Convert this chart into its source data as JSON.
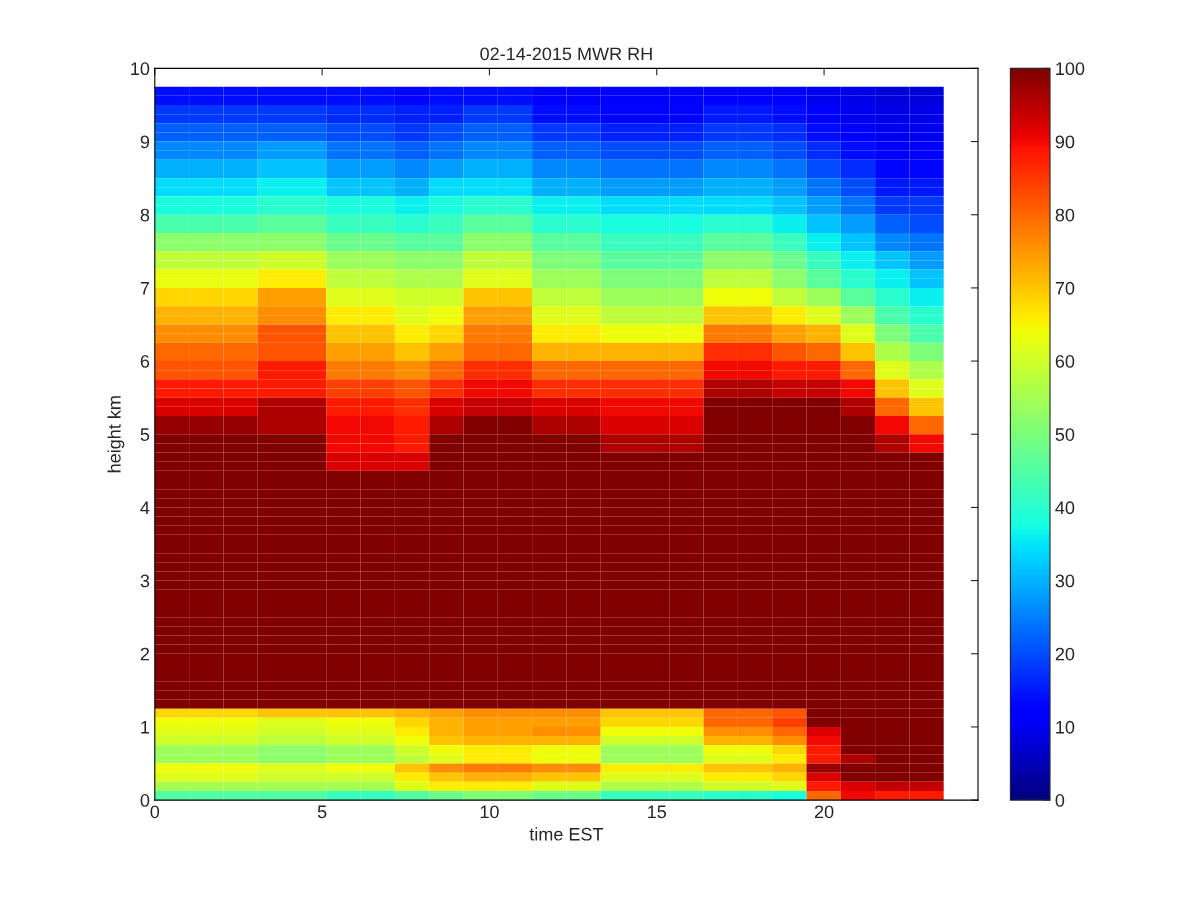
{
  "chart_data": {
    "type": "heatmap",
    "title": "02-14-2015 MWR RH",
    "xlabel": "time EST",
    "ylabel": "height km",
    "x": [
      0.5125,
      1.5375,
      2.5625,
      3.5875,
      4.6125,
      5.6375,
      6.6625,
      7.6875,
      8.7125,
      9.7375,
      10.7625,
      11.7875,
      12.8125,
      13.8375,
      14.8625,
      15.8875,
      16.9125,
      17.9375,
      18.9625,
      19.9875,
      21.0125,
      22.0375,
      23.0625
    ],
    "y": [
      9.6875,
      9.5625,
      9.4375,
      9.3125,
      9.1875,
      9.0625,
      8.9375,
      8.8125,
      8.6875,
      8.5625,
      8.4375,
      8.3125,
      8.1875,
      8.0625,
      7.9375,
      7.8125,
      7.6875,
      7.5625,
      7.4375,
      7.3125,
      7.1875,
      7.0625,
      6.9375,
      6.8125,
      6.6875,
      6.5625,
      6.4375,
      6.3125,
      6.1875,
      6.0625,
      5.9375,
      5.8125,
      5.6875,
      5.5625,
      5.4375,
      5.3125,
      5.1875,
      5.0625,
      4.9375,
      4.8125,
      4.6875,
      4.5625,
      4.4375,
      4.3125,
      4.1875,
      4.0625,
      3.9375,
      3.8125,
      3.6875,
      3.5625,
      3.4375,
      3.3125,
      3.1875,
      3.0625,
      2.9375,
      2.8125,
      2.6875,
      2.5625,
      2.4375,
      2.3125,
      2.1875,
      2.0625,
      1.9375,
      1.8125,
      1.6875,
      1.5625,
      1.4375,
      1.3125,
      1.1875,
      1.0625,
      0.9375,
      0.8125,
      0.6875,
      0.5625,
      0.4375,
      0.3125,
      0.1875,
      0.0625
    ],
    "xlim": [
      0,
      24.6
    ],
    "ylim": [
      0,
      10
    ],
    "xticks": [
      0,
      5,
      10,
      15,
      20
    ],
    "yticks": [
      0,
      1,
      2,
      3,
      4,
      5,
      6,
      7,
      8,
      9,
      10
    ],
    "clim": [
      0,
      100
    ],
    "cticks": [
      0,
      10,
      20,
      30,
      40,
      50,
      60,
      70,
      80,
      90,
      100
    ],
    "grid": false,
    "cells": [
      [
        14,
        14,
        14,
        14,
        14,
        14,
        14,
        13,
        14,
        14,
        14,
        12,
        12,
        11,
        11,
        11,
        12,
        12,
        12,
        10,
        9,
        8,
        8
      ],
      [
        14,
        14,
        14,
        14,
        14,
        14,
        14,
        13,
        14,
        14,
        14,
        12,
        12,
        11,
        11,
        11,
        12,
        12,
        12,
        10,
        9,
        8,
        8
      ],
      [
        18,
        18,
        18,
        18,
        18,
        17,
        17,
        16,
        16,
        18,
        18,
        14,
        14,
        13,
        13,
        13,
        15,
        15,
        14,
        12,
        10,
        9,
        9
      ],
      [
        18,
        18,
        18,
        18,
        18,
        17,
        17,
        16,
        16,
        18,
        18,
        14,
        14,
        13,
        13,
        13,
        15,
        15,
        14,
        12,
        10,
        9,
        9
      ],
      [
        22,
        22,
        22,
        22,
        22,
        20,
        20,
        18,
        20,
        22,
        22,
        18,
        18,
        16,
        16,
        16,
        18,
        18,
        17,
        14,
        12,
        10,
        10
      ],
      [
        22,
        22,
        22,
        22,
        22,
        20,
        20,
        18,
        20,
        22,
        22,
        18,
        18,
        16,
        16,
        16,
        18,
        18,
        17,
        14,
        12,
        10,
        10
      ],
      [
        26,
        26,
        26,
        28,
        28,
        24,
        24,
        22,
        24,
        26,
        26,
        22,
        22,
        20,
        20,
        20,
        22,
        22,
        20,
        17,
        14,
        11,
        11
      ],
      [
        26,
        26,
        26,
        28,
        28,
        24,
        24,
        22,
        24,
        26,
        26,
        22,
        22,
        20,
        20,
        20,
        22,
        22,
        20,
        17,
        14,
        11,
        11
      ],
      [
        30,
        30,
        30,
        32,
        32,
        28,
        28,
        26,
        28,
        30,
        30,
        26,
        26,
        24,
        24,
        24,
        26,
        26,
        24,
        20,
        17,
        13,
        13
      ],
      [
        30,
        30,
        30,
        32,
        32,
        28,
        28,
        26,
        28,
        30,
        30,
        26,
        26,
        24,
        24,
        24,
        26,
        26,
        24,
        20,
        17,
        13,
        13
      ],
      [
        34,
        34,
        34,
        36,
        36,
        32,
        32,
        30,
        34,
        34,
        34,
        30,
        30,
        28,
        28,
        28,
        30,
        30,
        28,
        24,
        20,
        15,
        15
      ],
      [
        34,
        34,
        34,
        36,
        36,
        32,
        32,
        30,
        34,
        34,
        34,
        30,
        30,
        28,
        28,
        28,
        30,
        30,
        28,
        24,
        20,
        15,
        15
      ],
      [
        38,
        38,
        38,
        40,
        40,
        38,
        38,
        36,
        38,
        40,
        40,
        36,
        36,
        34,
        34,
        34,
        34,
        34,
        32,
        28,
        24,
        18,
        18
      ],
      [
        38,
        38,
        38,
        40,
        40,
        38,
        38,
        36,
        38,
        40,
        40,
        36,
        36,
        34,
        34,
        34,
        34,
        34,
        32,
        28,
        24,
        18,
        18
      ],
      [
        44,
        44,
        44,
        46,
        46,
        42,
        42,
        40,
        42,
        46,
        46,
        40,
        40,
        38,
        38,
        38,
        40,
        40,
        36,
        32,
        28,
        22,
        20
      ],
      [
        44,
        44,
        44,
        46,
        46,
        42,
        42,
        40,
        42,
        46,
        46,
        40,
        40,
        38,
        38,
        38,
        40,
        40,
        36,
        32,
        28,
        22,
        20
      ],
      [
        52,
        52,
        52,
        52,
        52,
        48,
        48,
        46,
        46,
        52,
        52,
        46,
        46,
        42,
        42,
        42,
        46,
        46,
        42,
        36,
        32,
        26,
        24
      ],
      [
        52,
        52,
        52,
        52,
        52,
        48,
        48,
        46,
        46,
        52,
        52,
        46,
        46,
        42,
        42,
        42,
        46,
        46,
        42,
        36,
        32,
        26,
        24
      ],
      [
        58,
        58,
        58,
        60,
        60,
        54,
        54,
        52,
        52,
        58,
        58,
        50,
        50,
        46,
        46,
        46,
        52,
        52,
        48,
        42,
        36,
        32,
        28
      ],
      [
        58,
        58,
        58,
        60,
        60,
        54,
        54,
        52,
        52,
        58,
        58,
        50,
        50,
        46,
        46,
        46,
        52,
        52,
        48,
        42,
        36,
        32,
        28
      ],
      [
        63,
        63,
        63,
        66,
        66,
        58,
        58,
        56,
        56,
        62,
        62,
        54,
        54,
        50,
        50,
        50,
        58,
        58,
        52,
        46,
        40,
        36,
        32
      ],
      [
        63,
        63,
        63,
        66,
        66,
        58,
        58,
        56,
        56,
        62,
        62,
        54,
        54,
        50,
        50,
        50,
        58,
        58,
        52,
        46,
        40,
        36,
        32
      ],
      [
        68,
        68,
        68,
        74,
        74,
        62,
        62,
        60,
        60,
        70,
        70,
        58,
        58,
        54,
        54,
        54,
        64,
        64,
        58,
        54,
        46,
        40,
        36
      ],
      [
        68,
        68,
        68,
        74,
        74,
        62,
        62,
        60,
        60,
        70,
        70,
        58,
        58,
        54,
        54,
        54,
        64,
        64,
        58,
        54,
        46,
        40,
        36
      ],
      [
        72,
        72,
        72,
        76,
        76,
        66,
        66,
        62,
        64,
        74,
        74,
        62,
        62,
        58,
        58,
        58,
        70,
        70,
        66,
        62,
        54,
        44,
        40
      ],
      [
        72,
        72,
        72,
        76,
        76,
        66,
        66,
        62,
        64,
        74,
        74,
        62,
        62,
        58,
        58,
        58,
        70,
        70,
        66,
        62,
        54,
        44,
        40
      ],
      [
        76,
        76,
        76,
        82,
        82,
        70,
        70,
        66,
        68,
        78,
        78,
        66,
        66,
        64,
        64,
        64,
        78,
        78,
        74,
        72,
        62,
        50,
        44
      ],
      [
        76,
        76,
        76,
        82,
        82,
        70,
        70,
        66,
        68,
        78,
        78,
        66,
        66,
        64,
        64,
        64,
        78,
        78,
        74,
        72,
        62,
        50,
        44
      ],
      [
        80,
        80,
        80,
        82,
        82,
        74,
        74,
        70,
        74,
        80,
        80,
        72,
        72,
        72,
        72,
        72,
        86,
        86,
        82,
        80,
        70,
        56,
        50
      ],
      [
        80,
        80,
        80,
        82,
        82,
        74,
        74,
        70,
        74,
        80,
        80,
        72,
        72,
        72,
        72,
        72,
        86,
        86,
        82,
        80,
        70,
        56,
        50
      ],
      [
        82,
        82,
        82,
        88,
        88,
        78,
        78,
        76,
        80,
        86,
        86,
        80,
        80,
        80,
        80,
        80,
        90,
        90,
        88,
        88,
        80,
        62,
        56
      ],
      [
        82,
        82,
        82,
        88,
        88,
        78,
        78,
        76,
        80,
        86,
        86,
        80,
        80,
        80,
        80,
        80,
        90,
        90,
        88,
        88,
        80,
        62,
        56
      ],
      [
        88,
        88,
        88,
        88,
        88,
        84,
        84,
        82,
        86,
        90,
        90,
        86,
        86,
        86,
        86,
        86,
        96,
        96,
        94,
        94,
        90,
        70,
        62
      ],
      [
        88,
        88,
        88,
        88,
        88,
        84,
        84,
        82,
        86,
        90,
        90,
        86,
        86,
        86,
        86,
        86,
        96,
        96,
        94,
        94,
        90,
        70,
        62
      ],
      [
        92,
        92,
        92,
        96,
        96,
        88,
        88,
        86,
        92,
        94,
        94,
        92,
        92,
        90,
        90,
        90,
        100,
        100,
        100,
        100,
        96,
        80,
        70
      ],
      [
        92,
        92,
        92,
        96,
        96,
        88,
        88,
        86,
        92,
        94,
        94,
        92,
        92,
        90,
        90,
        90,
        100,
        100,
        100,
        100,
        96,
        80,
        70
      ],
      [
        98,
        98,
        98,
        96,
        96,
        90,
        90,
        88,
        96,
        100,
        100,
        96,
        96,
        92,
        92,
        92,
        100,
        100,
        100,
        100,
        100,
        90,
        80
      ],
      [
        98,
        98,
        98,
        96,
        96,
        90,
        90,
        88,
        96,
        100,
        100,
        96,
        96,
        92,
        92,
        92,
        100,
        100,
        100,
        100,
        100,
        90,
        80
      ],
      [
        100,
        100,
        100,
        100,
        100,
        90,
        90,
        88,
        100,
        100,
        100,
        100,
        100,
        96,
        96,
        96,
        100,
        100,
        100,
        100,
        100,
        96,
        90
      ],
      [
        100,
        100,
        100,
        100,
        100,
        90,
        90,
        88,
        100,
        100,
        100,
        100,
        100,
        96,
        96,
        96,
        100,
        100,
        100,
        100,
        100,
        96,
        90
      ],
      [
        100,
        100,
        100,
        100,
        100,
        92,
        92,
        92,
        100,
        100,
        100,
        100,
        100,
        100,
        100,
        100,
        100,
        100,
        100,
        100,
        100,
        100,
        100
      ],
      [
        100,
        100,
        100,
        100,
        100,
        92,
        92,
        92,
        100,
        100,
        100,
        100,
        100,
        100,
        100,
        100,
        100,
        100,
        100,
        100,
        100,
        100,
        100
      ],
      [
        100,
        100,
        100,
        100,
        100,
        100,
        100,
        100,
        100,
        100,
        100,
        100,
        100,
        100,
        100,
        100,
        100,
        100,
        100,
        100,
        100,
        100,
        100
      ],
      [
        100,
        100,
        100,
        100,
        100,
        100,
        100,
        100,
        100,
        100,
        100,
        100,
        100,
        100,
        100,
        100,
        100,
        100,
        100,
        100,
        100,
        100,
        100
      ],
      [
        100,
        100,
        100,
        100,
        100,
        100,
        100,
        100,
        100,
        100,
        100,
        100,
        100,
        100,
        100,
        100,
        100,
        100,
        100,
        100,
        100,
        100,
        100
      ],
      [
        100,
        100,
        100,
        100,
        100,
        100,
        100,
        100,
        100,
        100,
        100,
        100,
        100,
        100,
        100,
        100,
        100,
        100,
        100,
        100,
        100,
        100,
        100
      ],
      [
        100,
        100,
        100,
        100,
        100,
        100,
        100,
        100,
        100,
        100,
        100,
        100,
        100,
        100,
        100,
        100,
        100,
        100,
        100,
        100,
        100,
        100,
        100
      ],
      [
        100,
        100,
        100,
        100,
        100,
        100,
        100,
        100,
        100,
        100,
        100,
        100,
        100,
        100,
        100,
        100,
        100,
        100,
        100,
        100,
        100,
        100,
        100
      ],
      [
        100,
        100,
        100,
        100,
        100,
        100,
        100,
        100,
        100,
        100,
        100,
        100,
        100,
        100,
        100,
        100,
        100,
        100,
        100,
        100,
        100,
        100,
        100
      ],
      [
        100,
        100,
        100,
        100,
        100,
        100,
        100,
        100,
        100,
        100,
        100,
        100,
        100,
        100,
        100,
        100,
        100,
        100,
        100,
        100,
        100,
        100,
        100
      ],
      [
        100,
        100,
        100,
        100,
        100,
        100,
        100,
        100,
        100,
        100,
        100,
        100,
        100,
        100,
        100,
        100,
        100,
        100,
        100,
        100,
        100,
        100,
        100
      ],
      [
        100,
        100,
        100,
        100,
        100,
        100,
        100,
        100,
        100,
        100,
        100,
        100,
        100,
        100,
        100,
        100,
        100,
        100,
        100,
        100,
        100,
        100,
        100
      ],
      [
        100,
        100,
        100,
        100,
        100,
        100,
        100,
        100,
        100,
        100,
        100,
        100,
        100,
        100,
        100,
        100,
        100,
        100,
        100,
        100,
        100,
        100,
        100
      ],
      [
        100,
        100,
        100,
        100,
        100,
        100,
        100,
        100,
        100,
        100,
        100,
        100,
        100,
        100,
        100,
        100,
        100,
        100,
        100,
        100,
        100,
        100,
        100
      ],
      [
        100,
        100,
        100,
        100,
        100,
        100,
        100,
        100,
        100,
        100,
        100,
        100,
        100,
        100,
        100,
        100,
        100,
        100,
        100,
        100,
        100,
        100,
        100
      ],
      [
        100,
        100,
        100,
        100,
        100,
        100,
        100,
        100,
        100,
        100,
        100,
        100,
        100,
        100,
        100,
        100,
        100,
        100,
        100,
        100,
        100,
        100,
        100
      ],
      [
        100,
        100,
        100,
        100,
        100,
        100,
        100,
        100,
        100,
        100,
        100,
        100,
        100,
        100,
        100,
        100,
        100,
        100,
        100,
        100,
        100,
        100,
        100
      ],
      [
        100,
        100,
        100,
        100,
        100,
        100,
        100,
        100,
        100,
        100,
        100,
        100,
        100,
        100,
        100,
        100,
        100,
        100,
        100,
        100,
        100,
        100,
        100
      ],
      [
        100,
        100,
        100,
        100,
        100,
        100,
        100,
        100,
        100,
        100,
        100,
        100,
        100,
        100,
        100,
        100,
        100,
        100,
        100,
        100,
        100,
        100,
        100
      ],
      [
        100,
        100,
        100,
        100,
        100,
        100,
        100,
        100,
        100,
        100,
        100,
        100,
        100,
        100,
        100,
        100,
        100,
        100,
        100,
        100,
        100,
        100,
        100
      ],
      [
        100,
        100,
        100,
        100,
        100,
        100,
        100,
        100,
        100,
        100,
        100,
        100,
        100,
        100,
        100,
        100,
        100,
        100,
        100,
        100,
        100,
        100,
        100
      ],
      [
        100,
        100,
        100,
        100,
        100,
        100,
        100,
        100,
        100,
        100,
        100,
        100,
        100,
        100,
        100,
        100,
        100,
        100,
        100,
        100,
        100,
        100,
        100
      ],
      [
        100,
        100,
        100,
        100,
        100,
        100,
        100,
        100,
        100,
        100,
        100,
        100,
        100,
        100,
        100,
        100,
        100,
        100,
        100,
        100,
        100,
        100,
        100
      ],
      [
        100,
        100,
        100,
        100,
        100,
        100,
        100,
        100,
        100,
        100,
        100,
        100,
        100,
        100,
        100,
        100,
        100,
        100,
        100,
        100,
        100,
        100,
        100
      ],
      [
        100,
        100,
        100,
        100,
        100,
        100,
        100,
        100,
        100,
        100,
        100,
        100,
        100,
        100,
        100,
        100,
        100,
        100,
        100,
        100,
        100,
        100,
        100
      ],
      [
        100,
        100,
        100,
        100,
        100,
        100,
        100,
        100,
        100,
        100,
        100,
        100,
        100,
        100,
        100,
        100,
        100,
        100,
        100,
        100,
        100,
        100,
        100
      ],
      [
        100,
        100,
        100,
        100,
        100,
        100,
        100,
        100,
        100,
        100,
        100,
        100,
        100,
        100,
        100,
        100,
        100,
        100,
        100,
        100,
        100,
        100,
        100
      ],
      [
        100,
        100,
        100,
        100,
        100,
        100,
        100,
        100,
        100,
        100,
        100,
        100,
        100,
        100,
        100,
        100,
        100,
        100,
        100,
        100,
        100,
        100,
        100
      ],
      [
        68,
        68,
        68,
        70,
        70,
        70,
        70,
        72,
        74,
        76,
        76,
        76,
        76,
        70,
        70,
        70,
        80,
        80,
        82,
        100,
        100,
        100,
        100
      ],
      [
        64,
        64,
        64,
        62,
        62,
        64,
        64,
        68,
        72,
        74,
        74,
        74,
        74,
        68,
        68,
        68,
        80,
        80,
        84,
        100,
        100,
        100,
        100
      ],
      [
        62,
        62,
        62,
        60,
        60,
        62,
        62,
        66,
        72,
        74,
        74,
        76,
        76,
        64,
        64,
        64,
        76,
        76,
        80,
        92,
        100,
        100,
        100
      ],
      [
        60,
        60,
        60,
        58,
        58,
        60,
        60,
        64,
        70,
        72,
        72,
        72,
        72,
        60,
        60,
        60,
        72,
        72,
        76,
        90,
        100,
        100,
        100
      ],
      [
        54,
        54,
        54,
        52,
        52,
        54,
        54,
        60,
        64,
        66,
        66,
        64,
        64,
        54,
        54,
        54,
        64,
        64,
        68,
        88,
        100,
        100,
        100
      ],
      [
        54,
        54,
        54,
        52,
        52,
        54,
        54,
        58,
        62,
        66,
        66,
        64,
        64,
        54,
        54,
        54,
        62,
        62,
        66,
        88,
        96,
        100,
        100
      ],
      [
        64,
        64,
        64,
        62,
        62,
        64,
        64,
        70,
        76,
        78,
        78,
        76,
        76,
        66,
        66,
        66,
        70,
        70,
        72,
        98,
        100,
        100,
        100
      ],
      [
        62,
        62,
        62,
        60,
        60,
        60,
        60,
        66,
        70,
        72,
        72,
        70,
        70,
        62,
        62,
        62,
        66,
        66,
        68,
        92,
        100,
        100,
        100
      ],
      [
        55,
        55,
        55,
        55,
        55,
        55,
        55,
        62,
        66,
        66,
        66,
        62,
        62,
        56,
        56,
        56,
        60,
        60,
        62,
        88,
        92,
        94,
        94
      ],
      [
        45,
        45,
        45,
        45,
        45,
        42,
        42,
        45,
        48,
        50,
        50,
        48,
        48,
        42,
        42,
        42,
        40,
        40,
        38,
        80,
        90,
        88,
        88
      ]
    ]
  }
}
